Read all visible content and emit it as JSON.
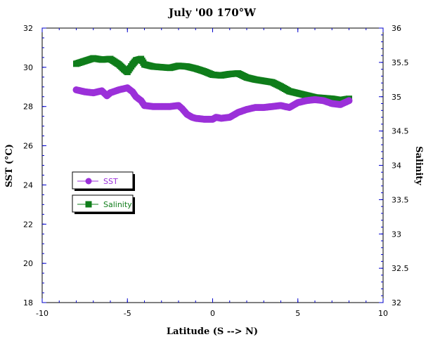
{
  "chart_data": {
    "type": "line",
    "title": "July '00 170°W",
    "xlabel": "Latitude (S --> N)",
    "ylabel": "SST (°C)",
    "y2label": "Salinity",
    "xlim": [
      -10,
      10
    ],
    "ylim": [
      18,
      32
    ],
    "y2lim": [
      32,
      36
    ],
    "x_ticks": [
      "-10",
      "-5",
      "0",
      "5",
      "10"
    ],
    "y_ticks": [
      "18",
      "20",
      "22",
      "24",
      "26",
      "28",
      "30",
      "32"
    ],
    "y2_ticks": [
      "32",
      "32.5",
      "33",
      "33.5",
      "34",
      "34.5",
      "35",
      "35.5",
      "36"
    ],
    "grid": false,
    "legend_position": "left-middle",
    "colors": {
      "sst": "#9b30d9",
      "salinity": "#0f7d1a",
      "axis": "#0000cc"
    },
    "series": [
      {
        "name": "SST",
        "axis": "left",
        "marker": "circle",
        "x": [
          -8.0,
          -7.5,
          -7.0,
          -6.5,
          -6.2,
          -6.0,
          -5.5,
          -5.0,
          -4.7,
          -4.5,
          -4.2,
          -4.0,
          -3.5,
          -3.0,
          -2.5,
          -2.0,
          -1.8,
          -1.5,
          -1.2,
          -1.0,
          -0.5,
          0.0,
          0.2,
          0.5,
          1.0,
          1.5,
          2.0,
          2.5,
          3.0,
          3.5,
          4.0,
          4.5,
          5.0,
          5.5,
          6.0,
          6.5,
          7.0,
          7.5,
          8.0
        ],
        "values": [
          28.85,
          28.75,
          28.7,
          28.8,
          28.55,
          28.7,
          28.85,
          28.95,
          28.75,
          28.5,
          28.3,
          28.05,
          28.0,
          28.0,
          28.0,
          28.05,
          27.9,
          27.6,
          27.45,
          27.4,
          27.35,
          27.35,
          27.45,
          27.4,
          27.45,
          27.7,
          27.85,
          27.95,
          27.95,
          28.0,
          28.05,
          27.95,
          28.2,
          28.3,
          28.35,
          28.3,
          28.15,
          28.1,
          28.3
        ]
      },
      {
        "name": "Salinity",
        "axis": "right",
        "marker": "square",
        "x": [
          -8.0,
          -7.5,
          -7.0,
          -6.5,
          -6.0,
          -5.5,
          -5.2,
          -5.0,
          -4.7,
          -4.5,
          -4.2,
          -4.0,
          -3.5,
          -3.0,
          -2.5,
          -2.0,
          -1.5,
          -1.0,
          -0.5,
          0.0,
          0.5,
          1.0,
          1.5,
          2.0,
          2.5,
          3.0,
          3.5,
          4.0,
          4.5,
          5.0,
          5.5,
          6.0,
          6.5,
          7.0,
          7.5,
          8.0
        ],
        "values": [
          35.48,
          35.52,
          35.56,
          35.54,
          35.55,
          35.47,
          35.4,
          35.36,
          35.47,
          35.53,
          35.55,
          35.47,
          35.44,
          35.43,
          35.42,
          35.45,
          35.44,
          35.41,
          35.37,
          35.32,
          35.31,
          35.33,
          35.34,
          35.28,
          35.25,
          35.23,
          35.21,
          35.15,
          35.08,
          35.05,
          35.02,
          34.99,
          34.98,
          34.97,
          34.95,
          34.97
        ]
      }
    ]
  }
}
